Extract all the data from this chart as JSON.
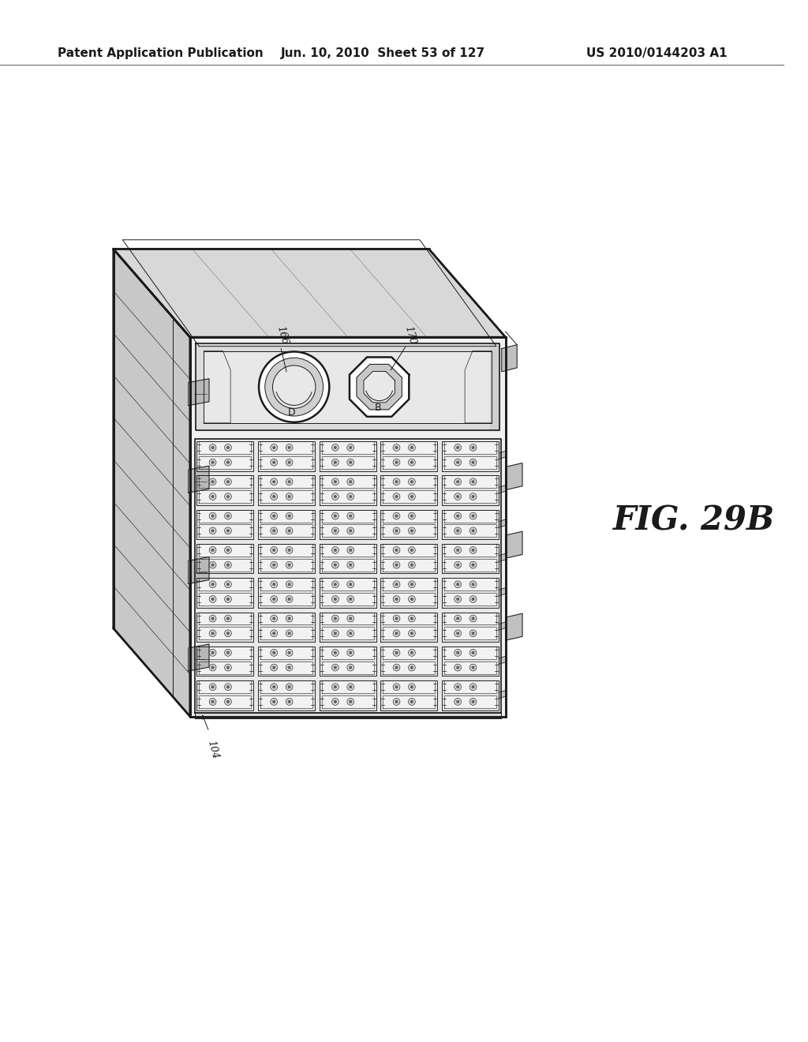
{
  "bg_color": "#ffffff",
  "header_left": "Patent Application Publication",
  "header_mid": "Jun. 10, 2010  Sheet 53 of 127",
  "header_right": "US 2010/0144203 A1",
  "fig_label": "FIG. 29B",
  "ref_104": "104",
  "ref_166": "166",
  "ref_170": "170",
  "ref_D": "D",
  "ref_B": "B",
  "line_color": "#1a1a1a",
  "fill_top": "#d8d8d8",
  "fill_left": "#c8c8c8",
  "fill_front": "#f0f0f0",
  "fill_front_top": "#e0e0e0",
  "fig_label_fontsize": 30,
  "header_fontsize": 11
}
